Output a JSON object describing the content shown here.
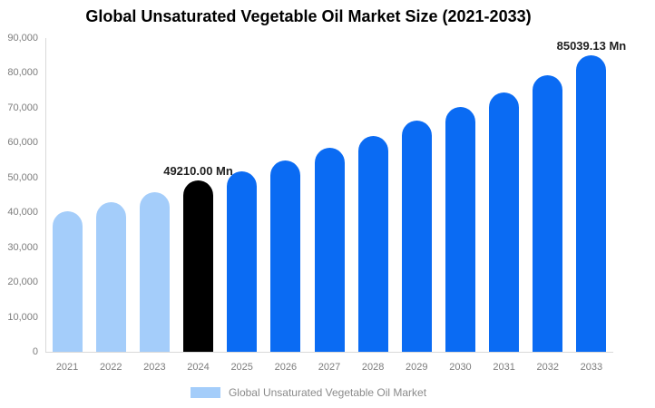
{
  "title": "Global Unsaturated Vegetable Oil Market Size (2021-2033)",
  "legend": {
    "label": "Global Unsaturated Vegetable Oil Market",
    "swatch_color": "#a4cdfa"
  },
  "colors": {
    "past_bar": "#a4cdfa",
    "highlight_bar": "#000000",
    "forecast_bar": "#0a6bf3",
    "axis_line": "#d9d9d9",
    "axis_text": "#7c7c7c",
    "annotation_text": "#1f1f1f",
    "title_text": "#000000"
  },
  "chart_data": {
    "type": "bar",
    "title": "Global Unsaturated Vegetable Oil Market Size (2021-2033)",
    "xlabel": "",
    "ylabel": "",
    "ylim": [
      0,
      90000
    ],
    "grid": false,
    "legend_position": "bottom",
    "categories": [
      "2021",
      "2022",
      "2023",
      "2024",
      "2025",
      "2026",
      "2027",
      "2028",
      "2029",
      "2030",
      "2031",
      "2032",
      "2033"
    ],
    "values": [
      40300,
      42900,
      45800,
      49210,
      51800,
      54900,
      58400,
      61900,
      66200,
      70250,
      74350,
      79400,
      85039.13
    ],
    "bar_colors": [
      "#a4cdfa",
      "#a4cdfa",
      "#a4cdfa",
      "#000000",
      "#0a6bf3",
      "#0a6bf3",
      "#0a6bf3",
      "#0a6bf3",
      "#0a6bf3",
      "#0a6bf3",
      "#0a6bf3",
      "#0a6bf3",
      "#0a6bf3"
    ],
    "y_tick_values": [
      0,
      10000,
      20000,
      30000,
      40000,
      50000,
      60000,
      70000,
      80000,
      90000
    ],
    "y_tick_labels": [
      "0",
      "10,000",
      "20,000",
      "30,000",
      "40,000",
      "50,000",
      "60,000",
      "70,000",
      "80,000",
      "90,000"
    ],
    "annotations": [
      {
        "index": 3,
        "text": "49210.00 Mn"
      },
      {
        "index": 12,
        "text": "85039.13 Mn"
      }
    ]
  }
}
